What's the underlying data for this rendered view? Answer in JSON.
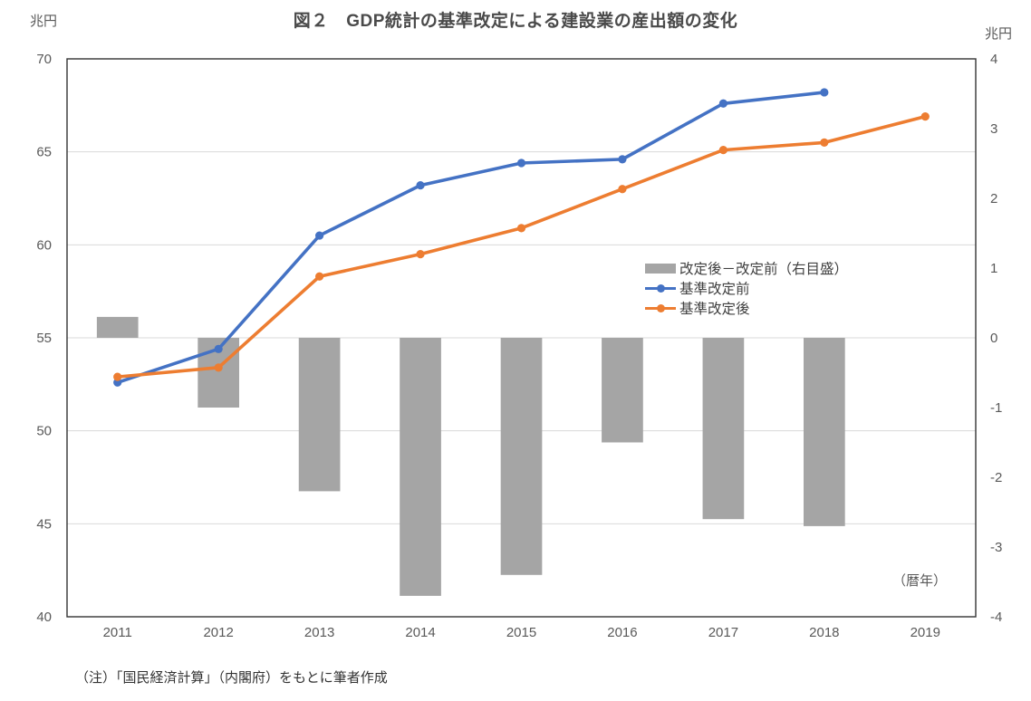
{
  "page": {
    "title": "図２　GDP統計の基準改定による建設業の産出額の変化",
    "left_axis_unit": "兆円",
    "right_axis_unit": "兆円",
    "calendar_year_label": "（暦年）",
    "footnote": "（注）「国民経済計算」（内閣府）をもとに筆者作成"
  },
  "legend": {
    "items": [
      {
        "label": "改定後－改定前（右目盛）",
        "type": "bar",
        "color": "#a5a5a5"
      },
      {
        "label": "基準改定前",
        "type": "line",
        "color": "#4472c4"
      },
      {
        "label": "基準改定後",
        "type": "line",
        "color": "#ed7d31"
      }
    ]
  },
  "chart_data": {
    "type": "combo-bar-line",
    "title": "図２　GDP統計の基準改定による建設業の産出額の変化",
    "categories": [
      "2011",
      "2012",
      "2013",
      "2014",
      "2015",
      "2016",
      "2017",
      "2018",
      "2019"
    ],
    "series": [
      {
        "name": "改定後－改定前（右目盛）",
        "type": "bar",
        "axis": "right",
        "color": "#a5a5a5",
        "values": [
          0.3,
          -1.0,
          -2.2,
          -3.7,
          -3.4,
          -1.5,
          -2.6,
          -2.7,
          null
        ]
      },
      {
        "name": "基準改定前",
        "type": "line",
        "axis": "left",
        "color": "#4472c4",
        "values": [
          52.6,
          54.4,
          60.5,
          63.2,
          64.4,
          64.6,
          67.6,
          68.2,
          null
        ]
      },
      {
        "name": "基準改定後",
        "type": "line",
        "axis": "left",
        "color": "#ed7d31",
        "values": [
          52.9,
          53.4,
          58.3,
          59.5,
          60.9,
          63.0,
          65.1,
          65.5,
          66.9
        ]
      }
    ],
    "left_axis": {
      "title": "兆円",
      "min": 40,
      "max": 70,
      "step": 5,
      "ticks": [
        70,
        65,
        60,
        55,
        50,
        45,
        40
      ]
    },
    "right_axis": {
      "title": "兆円",
      "min": -4,
      "max": 4,
      "step": 1,
      "ticks": [
        4,
        3,
        2,
        1,
        0,
        -1,
        -2,
        -3,
        -4
      ]
    },
    "x_axis_note": "（暦年）",
    "grid": true,
    "legend_position": "inside-middle-right",
    "colors": {
      "grid": "#d9d9d9",
      "border": "#333333",
      "axis_text": "#595959"
    }
  }
}
